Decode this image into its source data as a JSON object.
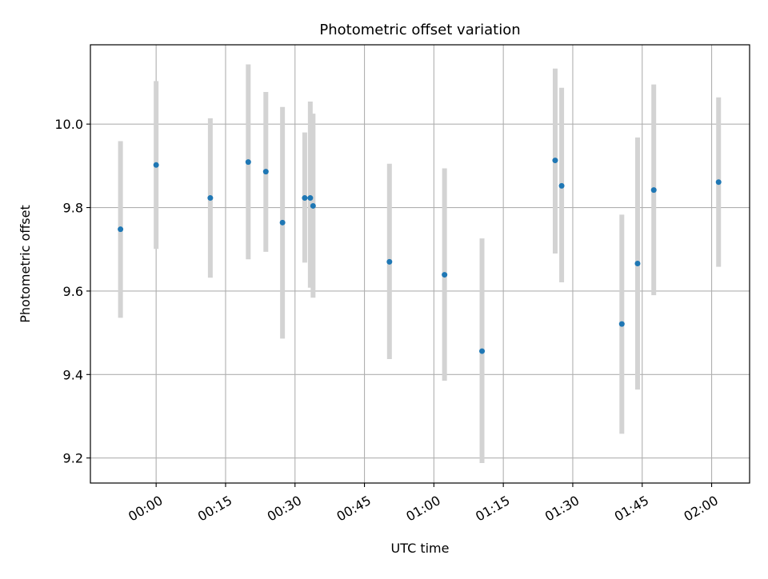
{
  "chart_data": {
    "type": "scatter",
    "title": "Photometric offset variation",
    "xlabel": "UTC time",
    "ylabel": "Photometric offset",
    "x_tick_labels": [
      "00:00",
      "00:15",
      "00:30",
      "00:45",
      "01:00",
      "01:15",
      "01:30",
      "01:45",
      "02:00"
    ],
    "x_ticks": [
      "00:00",
      "00:15",
      "00:30",
      "00:45",
      "01:00",
      "01:15",
      "01:30",
      "01:45",
      "02:00"
    ],
    "xlim": [
      "-00:14.2",
      "02:08.2"
    ],
    "y_tick_labels": [
      "9.2",
      "9.4",
      "9.6",
      "9.8",
      "10.0"
    ],
    "y_ticks": [
      9.2,
      9.4,
      9.6,
      9.8,
      10.0
    ],
    "ylim": [
      9.14,
      10.19
    ],
    "grid": true,
    "points": [
      {
        "time": "-00:07.7",
        "value": 9.748,
        "yerr_low": 9.536,
        "yerr_high": 9.959
      },
      {
        "time": "00:00.0",
        "value": 9.902,
        "yerr_low": 9.701,
        "yerr_high": 10.103
      },
      {
        "time": "00:11.7",
        "value": 9.823,
        "yerr_low": 9.632,
        "yerr_high": 10.014
      },
      {
        "time": "00:19.9",
        "value": 9.909,
        "yerr_low": 9.676,
        "yerr_high": 10.143
      },
      {
        "time": "00:23.7",
        "value": 9.886,
        "yerr_low": 9.694,
        "yerr_high": 10.077
      },
      {
        "time": "00:27.3",
        "value": 9.764,
        "yerr_low": 9.486,
        "yerr_high": 10.041
      },
      {
        "time": "00:32.1",
        "value": 9.823,
        "yerr_low": 9.668,
        "yerr_high": 9.98
      },
      {
        "time": "00:33.3",
        "value": 9.823,
        "yerr_low": 9.608,
        "yerr_high": 10.054
      },
      {
        "time": "00:33.9",
        "value": 9.804,
        "yerr_low": 9.584,
        "yerr_high": 10.025
      },
      {
        "time": "00:50.4",
        "value": 9.67,
        "yerr_low": 9.437,
        "yerr_high": 9.905
      },
      {
        "time": "01:02.3",
        "value": 9.639,
        "yerr_low": 9.385,
        "yerr_high": 9.894
      },
      {
        "time": "01:10.4",
        "value": 9.456,
        "yerr_low": 9.188,
        "yerr_high": 9.726
      },
      {
        "time": "01:26.2",
        "value": 9.913,
        "yerr_low": 9.69,
        "yerr_high": 10.133
      },
      {
        "time": "01:27.6",
        "value": 9.852,
        "yerr_low": 9.621,
        "yerr_high": 10.087
      },
      {
        "time": "01:40.6",
        "value": 9.521,
        "yerr_low": 9.258,
        "yerr_high": 9.783
      },
      {
        "time": "01:44.0",
        "value": 9.666,
        "yerr_low": 9.364,
        "yerr_high": 9.968
      },
      {
        "time": "01:47.5",
        "value": 9.842,
        "yerr_low": 9.59,
        "yerr_high": 10.095
      },
      {
        "time": "02:01.5",
        "value": 9.861,
        "yerr_low": 9.658,
        "yerr_high": 10.064
      }
    ],
    "marker_color": "#1f77b4",
    "errorbar_color": "#d3d3d3",
    "grid_color": "#b0b0b0"
  }
}
